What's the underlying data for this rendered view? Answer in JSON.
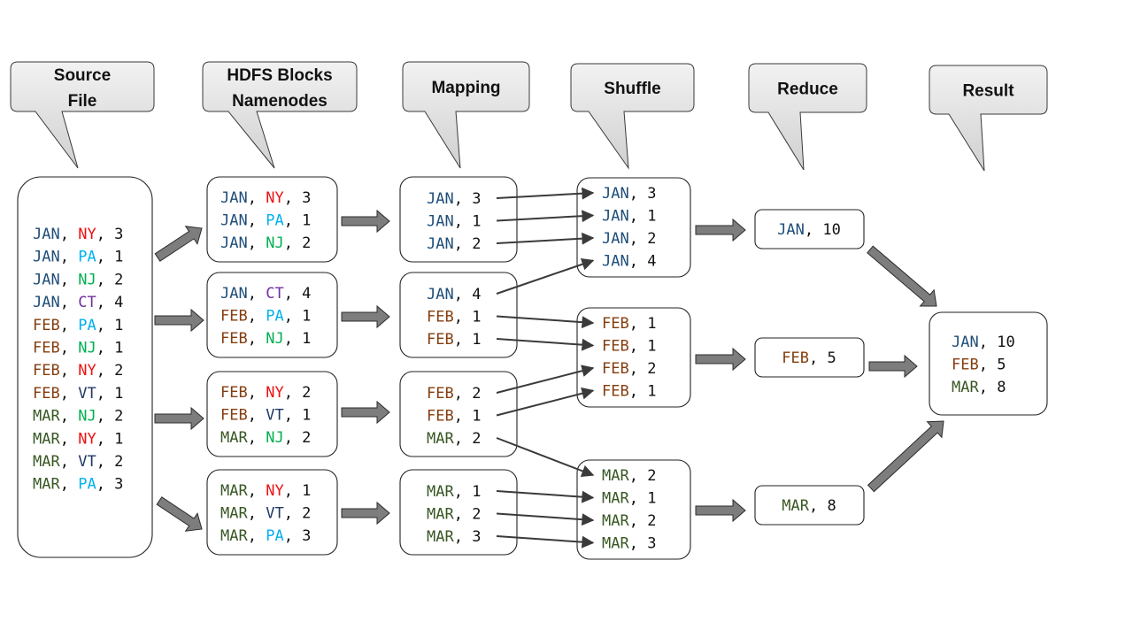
{
  "colors": {
    "JAN": "#1f4e79",
    "FEB": "#843c0c",
    "MAR": "#385723",
    "NY": "#ee1111",
    "PA": "#00b0f0",
    "NJ": "#00b050",
    "CT": "#7030a0",
    "VT": "#1f3864",
    "number": "#111111",
    "punct": "#111111"
  },
  "callouts": [
    {
      "id": "source",
      "lines": [
        "Source",
        "File"
      ]
    },
    {
      "id": "hdfs",
      "lines": [
        "HDFS Blocks",
        "Namenodes"
      ]
    },
    {
      "id": "mapping",
      "lines": [
        "Mapping"
      ]
    },
    {
      "id": "shuffle",
      "lines": [
        "Shuffle"
      ]
    },
    {
      "id": "reduce",
      "lines": [
        "Reduce"
      ]
    },
    {
      "id": "result",
      "lines": [
        "Result"
      ]
    }
  ],
  "source_file": [
    [
      "JAN",
      "NY",
      "3"
    ],
    [
      "JAN",
      "PA",
      "1"
    ],
    [
      "JAN",
      "NJ",
      "2"
    ],
    [
      "JAN",
      "CT",
      "4"
    ],
    [
      "FEB",
      "PA",
      "1"
    ],
    [
      "FEB",
      "NJ",
      "1"
    ],
    [
      "FEB",
      "NY",
      "2"
    ],
    [
      "FEB",
      "VT",
      "1"
    ],
    [
      "MAR",
      "NJ",
      "2"
    ],
    [
      "MAR",
      "NY",
      "1"
    ],
    [
      "MAR",
      "VT",
      "2"
    ],
    [
      "MAR",
      "PA",
      "3"
    ]
  ],
  "hdfs_blocks": [
    [
      [
        "JAN",
        "NY",
        "3"
      ],
      [
        "JAN",
        "PA",
        "1"
      ],
      [
        "JAN",
        "NJ",
        "2"
      ]
    ],
    [
      [
        "JAN",
        "CT",
        "4"
      ],
      [
        "FEB",
        "PA",
        "1"
      ],
      [
        "FEB",
        "NJ",
        "1"
      ]
    ],
    [
      [
        "FEB",
        "NY",
        "2"
      ],
      [
        "FEB",
        "VT",
        "1"
      ],
      [
        "MAR",
        "NJ",
        "2"
      ]
    ],
    [
      [
        "MAR",
        "NY",
        "1"
      ],
      [
        "MAR",
        "VT",
        "2"
      ],
      [
        "MAR",
        "PA",
        "3"
      ]
    ]
  ],
  "mapping": [
    [
      [
        "JAN",
        "3"
      ],
      [
        "JAN",
        "1"
      ],
      [
        "JAN",
        "2"
      ]
    ],
    [
      [
        "JAN",
        "4"
      ],
      [
        "FEB",
        "1"
      ],
      [
        "FEB",
        "1"
      ]
    ],
    [
      [
        "FEB",
        "2"
      ],
      [
        "FEB",
        "1"
      ],
      [
        "MAR",
        "2"
      ]
    ],
    [
      [
        "MAR",
        "1"
      ],
      [
        "MAR",
        "2"
      ],
      [
        "MAR",
        "3"
      ]
    ]
  ],
  "shuffle": [
    [
      [
        "JAN",
        "3"
      ],
      [
        "JAN",
        "1"
      ],
      [
        "JAN",
        "2"
      ],
      [
        "JAN",
        "4"
      ]
    ],
    [
      [
        "FEB",
        "1"
      ],
      [
        "FEB",
        "1"
      ],
      [
        "FEB",
        "2"
      ],
      [
        "FEB",
        "1"
      ]
    ],
    [
      [
        "MAR",
        "2"
      ],
      [
        "MAR",
        "1"
      ],
      [
        "MAR",
        "2"
      ],
      [
        "MAR",
        "3"
      ]
    ]
  ],
  "reduce": [
    [
      "JAN",
      "10"
    ],
    [
      "FEB",
      "5"
    ],
    [
      "MAR",
      "8"
    ]
  ],
  "result": [
    [
      "JAN",
      "10"
    ],
    [
      "FEB",
      " 5"
    ],
    [
      "MAR",
      " 8"
    ]
  ],
  "shuffle_links": [
    {
      "from": [
        0,
        0
      ],
      "to": [
        0,
        0
      ]
    },
    {
      "from": [
        0,
        1
      ],
      "to": [
        0,
        1
      ]
    },
    {
      "from": [
        0,
        2
      ],
      "to": [
        0,
        2
      ]
    },
    {
      "from": [
        1,
        0
      ],
      "to": [
        0,
        3
      ]
    },
    {
      "from": [
        1,
        1
      ],
      "to": [
        1,
        0
      ]
    },
    {
      "from": [
        1,
        2
      ],
      "to": [
        1,
        1
      ]
    },
    {
      "from": [
        2,
        0
      ],
      "to": [
        1,
        2
      ]
    },
    {
      "from": [
        2,
        1
      ],
      "to": [
        1,
        3
      ]
    },
    {
      "from": [
        2,
        2
      ],
      "to": [
        2,
        0
      ]
    },
    {
      "from": [
        3,
        0
      ],
      "to": [
        2,
        1
      ]
    },
    {
      "from": [
        3,
        1
      ],
      "to": [
        2,
        2
      ]
    },
    {
      "from": [
        3,
        2
      ],
      "to": [
        2,
        3
      ]
    }
  ]
}
